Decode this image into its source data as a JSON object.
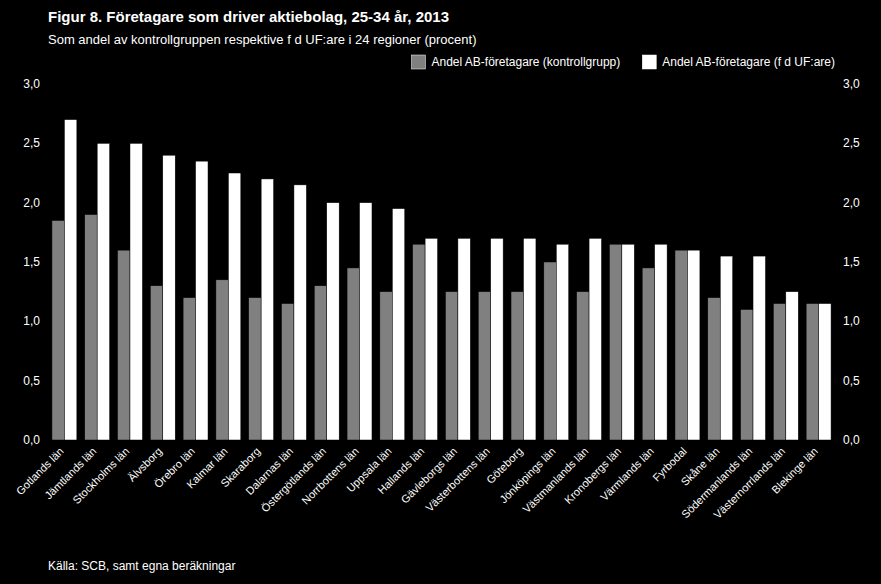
{
  "chart_data": {
    "type": "bar",
    "title": "Figur 8. Företagare som driver aktiebolag, 25-34 år, 2013",
    "subtitle": "Som andel av kontrollgruppen respektive f d UF:are i 24 regioner (procent)",
    "annotations": [
      "Källa: SCB, samt egna beräkningar"
    ],
    "categories": [
      "Gotlands län",
      "Jämtlands län",
      "Stockholms län",
      "Älvsborg",
      "Örebro län",
      "Kalmar län",
      "Skaraborg",
      "Dalarnas län",
      "Östergötlands län",
      "Norrbottens län",
      "Uppsala län",
      "Hallands län",
      "Gävleborgs län",
      "Västerbottens län",
      "Göteborg",
      "Jönköpings län",
      "Västmanlands län",
      "Kronobergs län",
      "Värmlands län",
      "Fyrbodal",
      "Skåne län",
      "Södermanlands län",
      "Västernorrlands län",
      "Blekinge län"
    ],
    "series": [
      {
        "name": "Andel AB-företagare (kontrollgrupp)",
        "color": "#808080",
        "values": [
          1.85,
          1.9,
          1.6,
          1.3,
          1.2,
          1.35,
          1.2,
          1.15,
          1.3,
          1.45,
          1.25,
          1.65,
          1.25,
          1.25,
          1.25,
          1.5,
          1.25,
          1.65,
          1.45,
          1.6,
          1.2,
          1.1,
          1.15,
          1.15
        ]
      },
      {
        "name": "Andel AB-företagare (f d UF:are)",
        "color": "#ffffff",
        "values": [
          2.7,
          2.5,
          2.5,
          2.4,
          2.35,
          2.25,
          2.2,
          2.15,
          2.0,
          2.0,
          1.95,
          1.7,
          1.7,
          1.7,
          1.7,
          1.65,
          1.7,
          1.65,
          1.65,
          1.6,
          1.55,
          1.55,
          1.25,
          1.15
        ]
      }
    ],
    "ylim": [
      0,
      3.0
    ],
    "yticks": [
      {
        "value": 0.0,
        "label": "0,0"
      },
      {
        "value": 0.5,
        "label": "0,5"
      },
      {
        "value": 1.0,
        "label": "1,0"
      },
      {
        "value": 1.5,
        "label": "1,5"
      },
      {
        "value": 2.0,
        "label": "2,0"
      },
      {
        "value": 2.5,
        "label": "2,5"
      },
      {
        "value": 3.0,
        "label": "3,0"
      }
    ],
    "grid": false,
    "legend": "top-right"
  }
}
